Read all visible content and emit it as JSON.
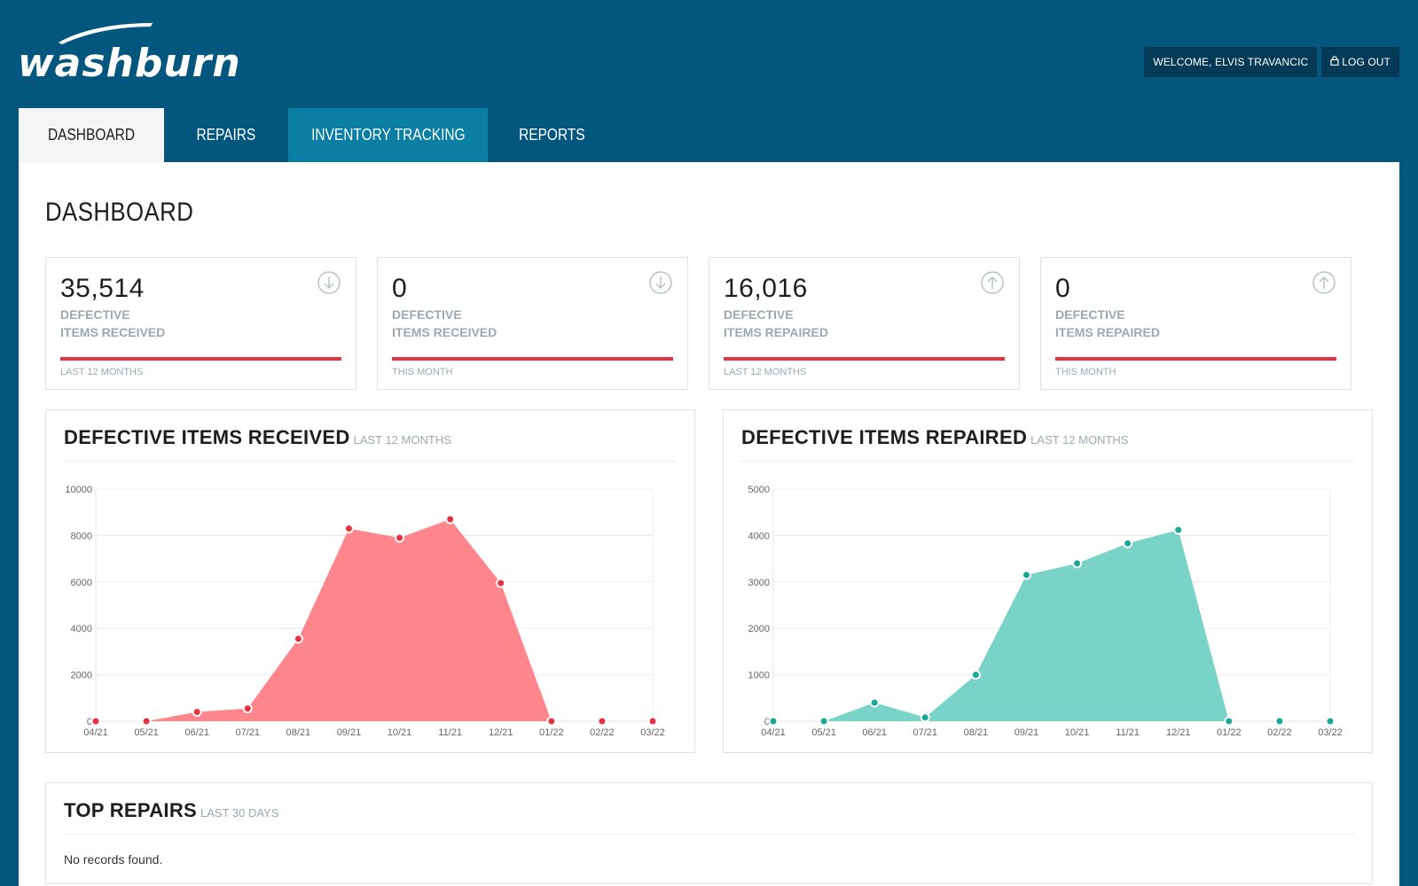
{
  "brand": {
    "name": "washburn"
  },
  "header": {
    "welcome_label": "WELCOME, ELVIS TRAVANCIC",
    "logout_label": "LOG OUT"
  },
  "tabs": [
    {
      "label": "DASHBOARD",
      "state": "active"
    },
    {
      "label": "REPAIRS",
      "state": "normal"
    },
    {
      "label": "INVENTORY TRACKING",
      "state": "hover"
    },
    {
      "label": "REPORTS",
      "state": "normal"
    }
  ],
  "page": {
    "title": "DASHBOARD"
  },
  "stats": [
    {
      "value": "35,514",
      "label_1": "DEFECTIVE",
      "label_2": "ITEMS RECEIVED",
      "period": "LAST 12 MONTHS",
      "icon": "arrow-down-circle-icon"
    },
    {
      "value": "0",
      "label_1": "DEFECTIVE",
      "label_2": "ITEMS RECEIVED",
      "period": "THIS MONTH",
      "icon": "arrow-down-circle-icon"
    },
    {
      "value": "16,016",
      "label_1": "DEFECTIVE",
      "label_2": "ITEMS REPAIRED",
      "period": "LAST 12 MONTHS",
      "icon": "arrow-up-circle-icon"
    },
    {
      "value": "0",
      "label_1": "DEFECTIVE",
      "label_2": "ITEMS REPAIRED",
      "period": "THIS MONTH",
      "icon": "arrow-up-circle-icon"
    }
  ],
  "panels": {
    "received": {
      "title": "DEFECTIVE ITEMS RECEIVED",
      "subtitle": "LAST 12 MONTHS"
    },
    "repaired": {
      "title": "DEFECTIVE ITEMS REPAIRED",
      "subtitle": "LAST 12 MONTHS"
    },
    "top_repairs": {
      "title": "TOP REPAIRS",
      "subtitle": "LAST 30 DAYS",
      "empty_text": "No records found."
    }
  },
  "colors": {
    "header_bg": "#03577f",
    "tab_highlight": "#0a7ea3",
    "stat_bar": "#e63342",
    "received_fill": "#ff868d",
    "received_point": "#e8303f",
    "repaired_fill": "#7ad3c7",
    "repaired_point": "#1aa898"
  },
  "chart_data": [
    {
      "type": "area",
      "title": "DEFECTIVE ITEMS RECEIVED",
      "categories": [
        "04/21",
        "05/21",
        "06/21",
        "07/21",
        "08/21",
        "09/21",
        "10/21",
        "11/21",
        "12/21",
        "01/22",
        "02/22",
        "03/22"
      ],
      "series": [
        {
          "values": [
            0,
            0,
            400,
            550,
            3550,
            8300,
            7900,
            8700,
            5950,
            0,
            0,
            0
          ]
        }
      ],
      "ylim": [
        0,
        10000
      ],
      "yticks": [
        0,
        2000,
        4000,
        6000,
        8000,
        10000
      ],
      "grid": true
    },
    {
      "type": "area",
      "title": "DEFECTIVE ITEMS REPAIRED",
      "categories": [
        "04/21",
        "05/21",
        "06/21",
        "07/21",
        "08/21",
        "09/21",
        "10/21",
        "11/21",
        "12/21",
        "01/22",
        "02/22",
        "03/22"
      ],
      "series": [
        {
          "values": [
            0,
            0,
            400,
            80,
            1000,
            3150,
            3400,
            3830,
            4120,
            0,
            0,
            0
          ]
        }
      ],
      "ylim": [
        0,
        5000
      ],
      "yticks": [
        0,
        1000,
        2000,
        3000,
        4000,
        5000
      ],
      "grid": true
    }
  ]
}
